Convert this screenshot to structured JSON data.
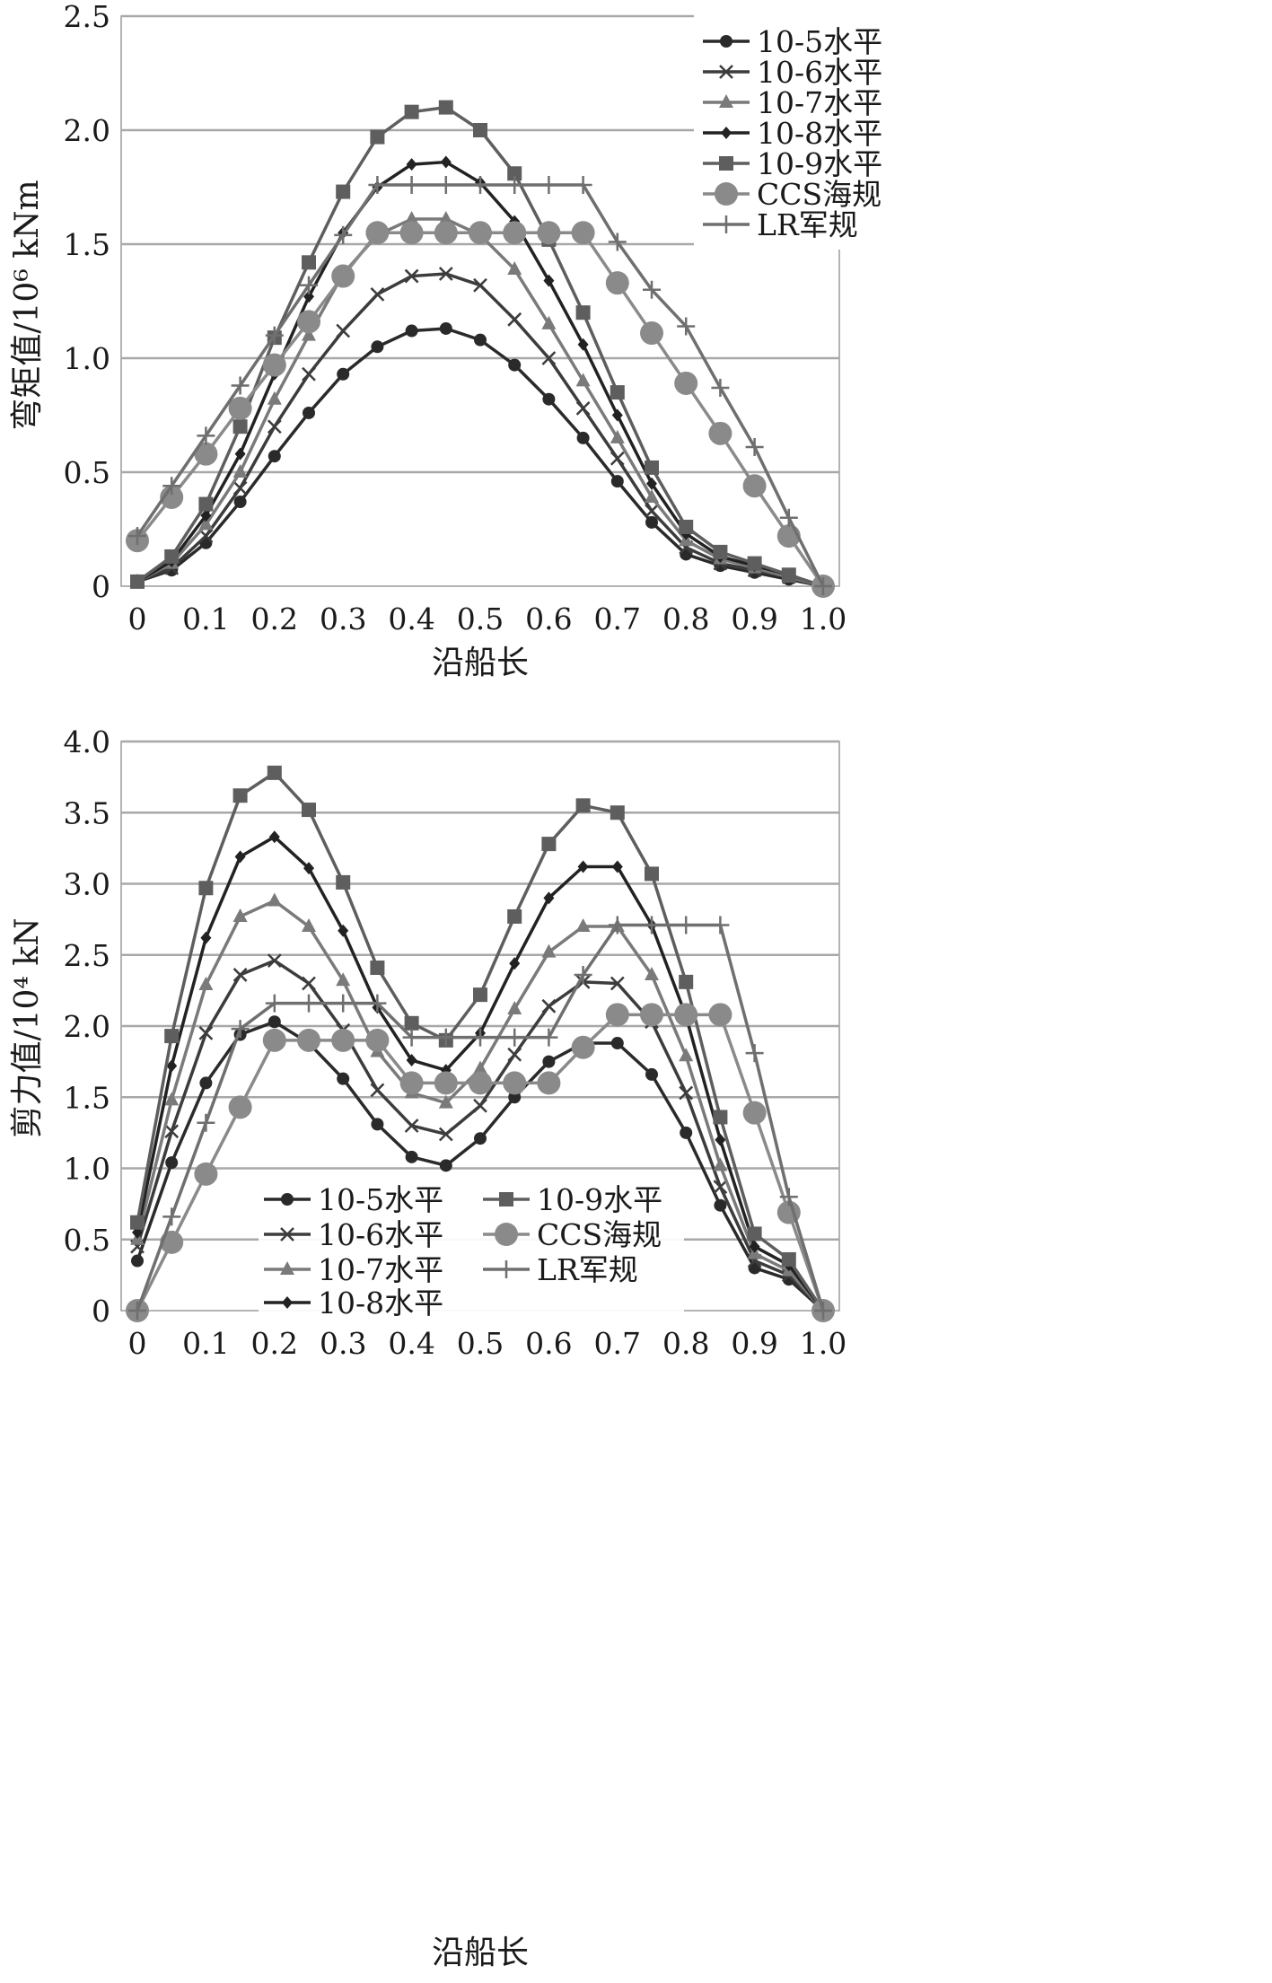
{
  "chart_data": [
    {
      "type": "line",
      "ylabel": "弯矩值/10⁶ kNm",
      "xlabel": "沿船长",
      "xlim": [
        0,
        1.0
      ],
      "ylim": [
        0,
        2.5
      ],
      "grid": "horizontal",
      "legend": "top-right",
      "x_ticks": [
        "0",
        "0.1",
        "0.2",
        "0.3",
        "0.4",
        "0.5",
        "0.6",
        "0.7",
        "0.8",
        "0.9",
        "1.0"
      ],
      "y_ticks": [
        "0",
        "0.5",
        "1.0",
        "1.5",
        "2.0",
        "2.5"
      ],
      "x": [
        0,
        0.05,
        0.1,
        0.15,
        0.2,
        0.25,
        0.3,
        0.35,
        0.4,
        0.45,
        0.5,
        0.55,
        0.6,
        0.65,
        0.7,
        0.75,
        0.8,
        0.85,
        0.9,
        0.95,
        1.0
      ],
      "series": [
        {
          "name": "10-5水平",
          "marker": "circle-small",
          "color": "#2a2a2a",
          "values": [
            0.02,
            0.07,
            0.19,
            0.37,
            0.57,
            0.76,
            0.93,
            1.05,
            1.12,
            1.13,
            1.08,
            0.97,
            0.82,
            0.65,
            0.46,
            0.28,
            0.14,
            0.09,
            0.06,
            0.03,
            0.0
          ]
        },
        {
          "name": "10-6水平",
          "marker": "x",
          "color": "#3c3c3c",
          "values": [
            0.02,
            0.08,
            0.22,
            0.43,
            0.7,
            0.93,
            1.12,
            1.28,
            1.36,
            1.37,
            1.32,
            1.17,
            1.0,
            0.78,
            0.56,
            0.33,
            0.17,
            0.1,
            0.07,
            0.04,
            0.0
          ]
        },
        {
          "name": "10-7水平",
          "marker": "triangle",
          "color": "#7a7a7a",
          "values": [
            0.02,
            0.1,
            0.27,
            0.5,
            0.82,
            1.1,
            1.37,
            1.54,
            1.61,
            1.61,
            1.54,
            1.39,
            1.15,
            0.9,
            0.65,
            0.39,
            0.2,
            0.12,
            0.08,
            0.04,
            0.0
          ]
        },
        {
          "name": "10-8水平",
          "marker": "diamond",
          "color": "#222222",
          "values": [
            0.02,
            0.11,
            0.31,
            0.58,
            0.93,
            1.27,
            1.55,
            1.75,
            1.85,
            1.86,
            1.77,
            1.6,
            1.34,
            1.06,
            0.75,
            0.45,
            0.23,
            0.13,
            0.09,
            0.05,
            0.0
          ]
        },
        {
          "name": "10-9水平",
          "marker": "square",
          "color": "#5e5e5e",
          "values": [
            0.02,
            0.13,
            0.36,
            0.7,
            1.09,
            1.42,
            1.73,
            1.97,
            2.08,
            2.1,
            2.0,
            1.81,
            1.52,
            1.2,
            0.85,
            0.52,
            0.26,
            0.15,
            0.1,
            0.05,
            0.0
          ]
        },
        {
          "name": "CCS海规",
          "marker": "circle-large",
          "color": "#8a8a8a",
          "values": [
            0.2,
            0.39,
            0.58,
            0.78,
            0.97,
            1.16,
            1.36,
            1.55,
            1.55,
            1.55,
            1.55,
            1.55,
            1.55,
            1.55,
            1.33,
            1.11,
            0.89,
            0.67,
            0.44,
            0.22,
            0.0
          ]
        },
        {
          "name": "LR军规",
          "marker": "plus",
          "color": "#6f6f6f",
          "values": [
            0.22,
            0.44,
            0.66,
            0.88,
            1.1,
            1.32,
            1.54,
            1.76,
            1.76,
            1.76,
            1.76,
            1.76,
            1.76,
            1.76,
            1.51,
            1.3,
            1.14,
            0.87,
            0.61,
            0.3,
            0.0
          ]
        }
      ]
    },
    {
      "type": "line",
      "ylabel": "剪力值/10⁴ kN",
      "xlabel": "沿船长",
      "xlim": [
        0,
        1.0
      ],
      "ylim": [
        0,
        4.0
      ],
      "grid": "horizontal",
      "legend": "bottom-center",
      "x_ticks": [
        "0",
        "0.1",
        "0.2",
        "0.3",
        "0.4",
        "0.5",
        "0.6",
        "0.7",
        "0.8",
        "0.9",
        "1.0"
      ],
      "y_ticks": [
        "0",
        "0.5",
        "1.0",
        "1.5",
        "2.0",
        "2.5",
        "3.0",
        "3.5",
        "4.0"
      ],
      "x": [
        0,
        0.05,
        0.1,
        0.15,
        0.2,
        0.25,
        0.3,
        0.35,
        0.4,
        0.45,
        0.5,
        0.55,
        0.6,
        0.65,
        0.7,
        0.75,
        0.8,
        0.85,
        0.9,
        0.95,
        1.0
      ],
      "series": [
        {
          "name": "10-5水平",
          "marker": "circle-small",
          "color": "#2a2a2a",
          "values": [
            0.35,
            1.04,
            1.6,
            1.94,
            2.03,
            1.88,
            1.63,
            1.31,
            1.08,
            1.02,
            1.21,
            1.5,
            1.75,
            1.88,
            1.88,
            1.66,
            1.25,
            0.74,
            0.3,
            0.22,
            0.0
          ]
        },
        {
          "name": "10-6水平",
          "marker": "x",
          "color": "#3c3c3c",
          "values": [
            0.45,
            1.26,
            1.95,
            2.36,
            2.46,
            2.3,
            1.97,
            1.55,
            1.3,
            1.24,
            1.44,
            1.8,
            2.14,
            2.31,
            2.3,
            2.03,
            1.53,
            0.87,
            0.35,
            0.25,
            0.0
          ]
        },
        {
          "name": "10-7水平",
          "marker": "triangle",
          "color": "#7a7a7a",
          "values": [
            0.5,
            1.48,
            2.29,
            2.77,
            2.88,
            2.7,
            2.32,
            1.82,
            1.53,
            1.46,
            1.7,
            2.12,
            2.52,
            2.7,
            2.7,
            2.36,
            1.79,
            1.02,
            0.4,
            0.28,
            0.0
          ]
        },
        {
          "name": "10-8水平",
          "marker": "diamond",
          "color": "#222222",
          "values": [
            0.55,
            1.72,
            2.62,
            3.19,
            3.33,
            3.11,
            2.67,
            2.13,
            1.76,
            1.69,
            1.95,
            2.44,
            2.9,
            3.12,
            3.12,
            2.71,
            2.07,
            1.2,
            0.45,
            0.32,
            0.0
          ]
        },
        {
          "name": "10-9水平",
          "marker": "square",
          "color": "#5e5e5e",
          "values": [
            0.62,
            1.93,
            2.97,
            3.62,
            3.78,
            3.52,
            3.01,
            2.41,
            2.02,
            1.9,
            2.22,
            2.77,
            3.28,
            3.55,
            3.5,
            3.07,
            2.31,
            1.36,
            0.54,
            0.36,
            0.0
          ]
        },
        {
          "name": "CCS海规",
          "marker": "circle-large",
          "color": "#8a8a8a",
          "values": [
            0.0,
            0.48,
            0.96,
            1.43,
            1.9,
            1.9,
            1.9,
            1.9,
            1.6,
            1.6,
            1.6,
            1.6,
            1.6,
            1.85,
            2.08,
            2.08,
            2.08,
            2.08,
            1.39,
            0.69,
            0.0
          ]
        },
        {
          "name": "LR军规",
          "marker": "plus",
          "color": "#6f6f6f",
          "values": [
            0.0,
            0.66,
            1.32,
            1.98,
            2.16,
            2.16,
            2.16,
            2.16,
            1.92,
            1.92,
            1.92,
            1.92,
            1.92,
            2.36,
            2.71,
            2.71,
            2.71,
            2.71,
            1.81,
            0.8,
            0.0
          ]
        }
      ]
    }
  ]
}
